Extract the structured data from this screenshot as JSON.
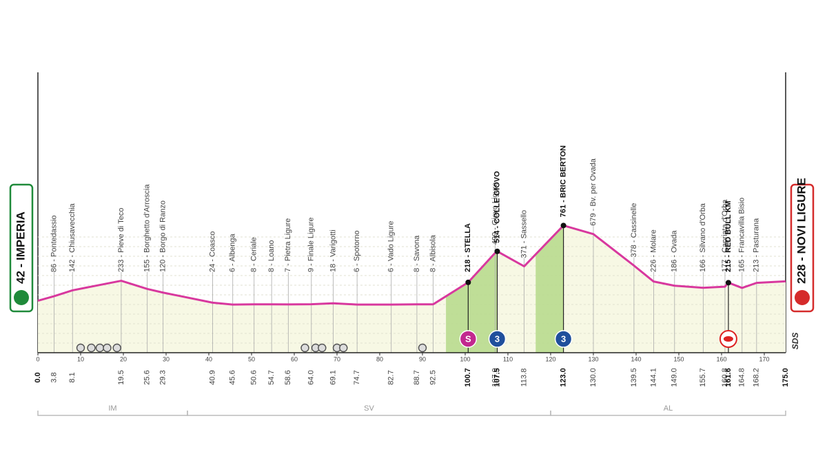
{
  "chart_data": {
    "type": "area",
    "xlim": [
      0,
      175
    ],
    "xticks": [
      0,
      10,
      20,
      30,
      40,
      50,
      60,
      70,
      80,
      90,
      100,
      110,
      120,
      130,
      140,
      150,
      160,
      170
    ],
    "color": "#d8389e",
    "fill": "#f7f8e4",
    "climb_fill": "#b5d98a",
    "waypoints": [
      {
        "km": 0,
        "km_label": "0.0",
        "elevation": 42,
        "label": "42 - IMPERIA",
        "key": true
      },
      {
        "km": 3.8,
        "km_label": "3.8",
        "elevation": 86,
        "label": "86 - Pontedassio"
      },
      {
        "km": 8.1,
        "km_label": "8.1",
        "elevation": 142,
        "label": "142 - Chiusavecchia"
      },
      {
        "km": 19.5,
        "km_label": "19.5",
        "elevation": 233,
        "label": "233 - Pieve di Teco"
      },
      {
        "km": 25.6,
        "km_label": "25.6",
        "elevation": 155,
        "label": "155 - Borghetto d'Arroscia"
      },
      {
        "km": 29.3,
        "km_label": "29.3",
        "elevation": 120,
        "label": "120 - Borgo di Ranzo"
      },
      {
        "km": 40.9,
        "km_label": "40.9",
        "elevation": 24,
        "label": "24 - Coasco"
      },
      {
        "km": 45.6,
        "km_label": "45.6",
        "elevation": 6,
        "label": "6 - Albenga"
      },
      {
        "km": 50.6,
        "km_label": "50.6",
        "elevation": 8,
        "label": "8 - Ceriale"
      },
      {
        "km": 54.7,
        "km_label": "54.7",
        "elevation": 8,
        "label": "8 - Loano"
      },
      {
        "km": 58.6,
        "km_label": "58.6",
        "elevation": 7,
        "label": "7 - Pietra Ligure"
      },
      {
        "km": 64,
        "km_label": "64.0",
        "elevation": 9,
        "label": "9 - Finale Ligure"
      },
      {
        "km": 69.1,
        "km_label": "69.1",
        "elevation": 18,
        "label": "18 - Varigotti"
      },
      {
        "km": 74.7,
        "km_label": "74.7",
        "elevation": 6,
        "label": "6 - Spotorno"
      },
      {
        "km": 82.7,
        "km_label": "82.7",
        "elevation": 6,
        "label": "6 - Vado Ligure"
      },
      {
        "km": 88.7,
        "km_label": "88.7",
        "elevation": 8,
        "label": "8 - Savona"
      },
      {
        "km": 92.5,
        "km_label": "92.5",
        "elevation": 8,
        "label": "8 - Albisola"
      },
      {
        "km": 100.7,
        "km_label": "100.7",
        "elevation": 218,
        "label": "218 - STELLA",
        "key": true
      },
      {
        "km": 107,
        "km_label": "107.0",
        "elevation": 499,
        "label": "499 - Giovo Ligure"
      },
      {
        "km": 107.5,
        "km_label": "107.5",
        "elevation": 514,
        "label": "514 - COLLE GIOVO",
        "key": true
      },
      {
        "km": 113.8,
        "km_label": "113.8",
        "elevation": 371,
        "label": "371 - Sassello"
      },
      {
        "km": 123,
        "km_label": "123.0",
        "elevation": 761,
        "label": "761 - BRIC BERTON",
        "key": true
      },
      {
        "km": 130,
        "km_label": "130.0",
        "elevation": 679,
        "label": "679 - Bv. per Ovada"
      },
      {
        "km": 139.5,
        "km_label": "139.5",
        "elevation": 378,
        "label": "378 - Cassinelle"
      },
      {
        "km": 144.1,
        "km_label": "144.1",
        "elevation": 226,
        "label": "226 - Molare"
      },
      {
        "km": 149,
        "km_label": "149.0",
        "elevation": 186,
        "label": "186 - Ovada"
      },
      {
        "km": 155.7,
        "km_label": "155.7",
        "elevation": 166,
        "label": "166 - Silvano d'Orba"
      },
      {
        "km": 160.8,
        "km_label": "160.8",
        "elevation": 177,
        "label": "177 - Capriata d'Orba"
      },
      {
        "km": 161.6,
        "km_label": "161.6",
        "elevation": 215,
        "label": "215 - RED BULL KM",
        "key": true
      },
      {
        "km": 164.8,
        "km_label": "164.8",
        "elevation": 165,
        "label": "165 - Francavilla Bisio"
      },
      {
        "km": 168.2,
        "km_label": "168.2",
        "elevation": 213,
        "label": "213 - Pasturana"
      },
      {
        "km": 175,
        "km_label": "175.0",
        "elevation": 228,
        "label": "228 - NOVI LIGURE",
        "key": true
      }
    ],
    "climbs": [
      {
        "from": 95.5,
        "to": 107.5
      },
      {
        "from": 116.5,
        "to": 123
      }
    ],
    "badges": [
      {
        "km": 100.7,
        "label": "S",
        "color": "#c2288f"
      },
      {
        "km": 107.5,
        "label": "3",
        "color": "#1f4f9c"
      },
      {
        "km": 123,
        "label": "3",
        "color": "#1f4f9c"
      }
    ],
    "regions": [
      {
        "name": "IM",
        "from": 0,
        "to": 35
      },
      {
        "name": "SV",
        "from": 35,
        "to": 120
      },
      {
        "name": "AL",
        "from": 120,
        "to": 175
      }
    ],
    "logo": "SDS"
  }
}
